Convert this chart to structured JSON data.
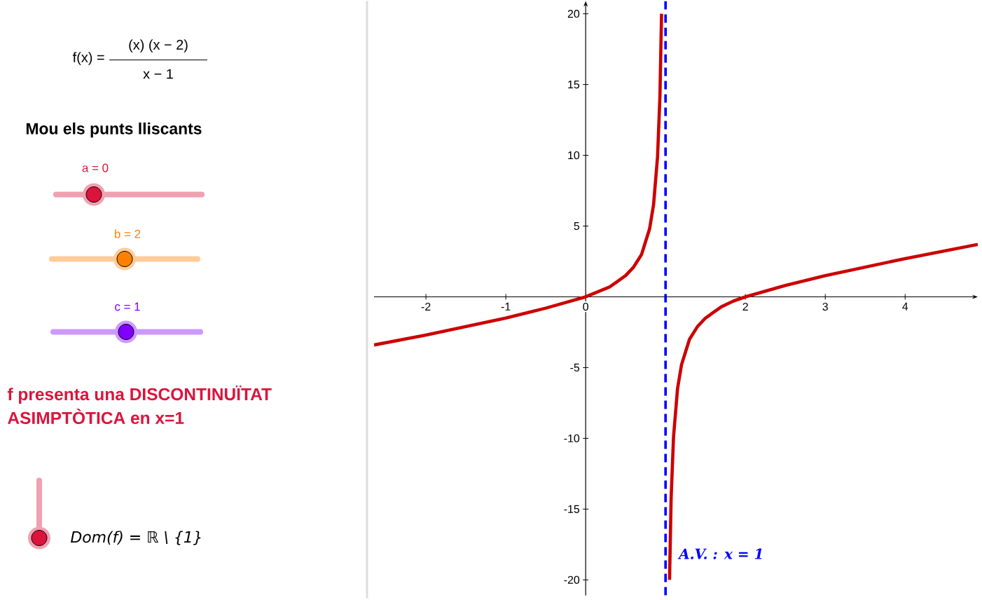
{
  "chart_data": {
    "type": "line",
    "xlim": [
      -2.65,
      4.91
    ],
    "ylim": [
      -21.1,
      20.9
    ],
    "xticks": [
      -2,
      -1,
      0,
      {
        "value": 1,
        "label": null
      },
      2,
      3,
      4
    ],
    "yticks": [
      -20,
      -15,
      -10,
      -5,
      5,
      10,
      15,
      20
    ],
    "series": [
      {
        "color": "#cc0000",
        "x": [
          -2.65,
          -2,
          -1,
          -0.5,
          0,
          0.3,
          0.4,
          0.5,
          0.6,
          0.7,
          0.8,
          0.85,
          0.9,
          0.93,
          0.95
        ],
        "values": [
          -3.4,
          -2.7,
          -1.5,
          -0.8,
          0,
          0.7,
          1.1,
          1.5,
          2.1,
          3.0,
          4.8,
          6.5,
          9.9,
          14.2,
          20.0
        ]
      },
      {
        "color": "#cc0000",
        "x": [
          1.05,
          1.07,
          1.1,
          1.15,
          1.2,
          1.3,
          1.4,
          1.5,
          1.6,
          1.7,
          1.85,
          2,
          2.5,
          3,
          4,
          4.91
        ],
        "values": [
          -20.0,
          -14.2,
          -9.9,
          -6.5,
          -4.8,
          -3.0,
          -2.1,
          -1.5,
          -1.1,
          -0.7,
          -0.3,
          0,
          0.8,
          1.5,
          2.7,
          3.7
        ]
      }
    ],
    "ref_lines": [
      {
        "axis": "x",
        "value": 1,
        "label": "A.V. : x = 1",
        "color": "#0000ff",
        "line_style": "dashed"
      }
    ],
    "annotations": [
      "f(x) =",
      "(x)  (x − 2)",
      "x − 1",
      "Mou els punts lliscants",
      "a = 0",
      "b = 2",
      "c = 1",
      "f presenta una DISCONTINUÏTAT ASIMPTÒTICA en x=1",
      "Dom(f) = ℝ \\ {1}"
    ]
  }
}
